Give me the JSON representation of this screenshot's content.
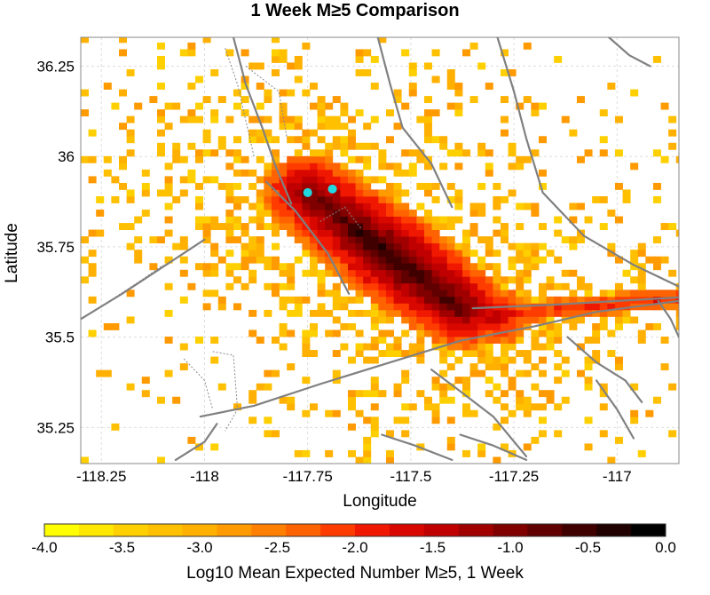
{
  "chart_data": {
    "type": "heatmap",
    "title": "1 Week M≥5 Comparison",
    "xlabel": "Longitude",
    "ylabel": "Latitude",
    "xlim": [
      -118.3,
      -116.85
    ],
    "ylim": [
      35.15,
      36.33
    ],
    "x_ticks": [
      -118.25,
      -118,
      -117.75,
      -117.5,
      -117.25,
      -117
    ],
    "x_tick_labels": [
      "-118.25",
      "-118",
      "-117.75",
      "-117.5",
      "-117.25",
      "-117"
    ],
    "y_ticks": [
      35.25,
      35.5,
      35.75,
      36,
      36.25
    ],
    "y_tick_labels": [
      "35.25",
      "35.5",
      "35.75",
      "36",
      "36.25"
    ],
    "grid": true,
    "cell_size_deg": 0.0185,
    "colorbar": {
      "label": "Log10 Mean Expected Number M≥5, 1 Week",
      "range": [
        -4.0,
        0.0
      ],
      "tick_values": [
        -4.0,
        -3.5,
        -3.0,
        -2.5,
        -2.0,
        -1.5,
        -1.0,
        -0.5,
        0.0
      ],
      "tick_labels": [
        "-4.0",
        "-3.5",
        "-3.0",
        "-2.5",
        "-2.0",
        "-1.5",
        "-1.0",
        "-0.5",
        "0.0"
      ],
      "colors": [
        "#ffff00",
        "#ffe800",
        "#ffd000",
        "#ffc000",
        "#ffb000",
        "#ff9a00",
        "#ff8000",
        "#ff6200",
        "#ff3c00",
        "#f01800",
        "#d80800",
        "#c00000",
        "#a00000",
        "#800000",
        "#600000",
        "#400000",
        "#200000",
        "#000000"
      ]
    },
    "hotspot_model": {
      "background_level": -3.1,
      "main_trend": {
        "x0": -117.75,
        "y0": 35.9,
        "x1": -117.38,
        "y1": 35.58,
        "peak": -0.4
      },
      "secondary_lobe": {
        "x": -117.3,
        "y": 35.56,
        "peak": -1.4
      },
      "east_band": {
        "x0": -117.4,
        "y0": 35.55,
        "x1": -116.85,
        "y1": 35.61,
        "peak": -1.9
      }
    },
    "markers": [
      {
        "lon": -117.75,
        "lat": 35.9,
        "color": "#22d8e0"
      },
      {
        "lon": -117.69,
        "lat": 35.91,
        "color": "#22d8e0"
      }
    ],
    "fault_traces": [
      [
        [
          -118.3,
          35.55
        ],
        [
          -118.2,
          35.62
        ],
        [
          -118.08,
          35.71
        ],
        [
          -118.0,
          35.77
        ]
      ],
      [
        [
          -118.01,
          35.28
        ],
        [
          -117.88,
          35.31
        ],
        [
          -117.72,
          35.37
        ],
        [
          -117.55,
          35.43
        ],
        [
          -117.38,
          35.49
        ],
        [
          -117.2,
          35.53
        ],
        [
          -117.05,
          35.57
        ],
        [
          -116.85,
          35.6
        ]
      ],
      [
        [
          -117.35,
          35.58
        ],
        [
          -117.15,
          35.59
        ],
        [
          -117.0,
          35.6
        ],
        [
          -116.85,
          35.61
        ]
      ],
      [
        [
          -117.85,
          35.93
        ],
        [
          -117.78,
          35.85
        ],
        [
          -117.7,
          35.73
        ],
        [
          -117.65,
          35.62
        ]
      ],
      [
        [
          -117.93,
          36.33
        ],
        [
          -117.9,
          36.2
        ],
        [
          -117.86,
          36.08
        ],
        [
          -117.83,
          35.98
        ],
        [
          -117.79,
          35.87
        ]
      ],
      [
        [
          -117.58,
          36.33
        ],
        [
          -117.55,
          36.2
        ],
        [
          -117.52,
          36.08
        ],
        [
          -117.45,
          35.98
        ],
        [
          -117.4,
          35.86
        ]
      ],
      [
        [
          -117.29,
          36.33
        ],
        [
          -117.25,
          36.18
        ],
        [
          -117.22,
          36.05
        ],
        [
          -117.18,
          35.9
        ],
        [
          -117.08,
          35.78
        ],
        [
          -116.96,
          35.7
        ],
        [
          -116.85,
          35.64
        ]
      ],
      [
        [
          -117.02,
          36.33
        ],
        [
          -116.97,
          36.28
        ],
        [
          -116.92,
          36.25
        ]
      ],
      [
        [
          -117.45,
          35.41
        ],
        [
          -117.38,
          35.35
        ],
        [
          -117.3,
          35.28
        ],
        [
          -117.22,
          35.17
        ]
      ],
      [
        [
          -117.12,
          35.5
        ],
        [
          -117.05,
          35.43
        ],
        [
          -116.98,
          35.38
        ],
        [
          -116.94,
          35.32
        ]
      ],
      [
        [
          -117.05,
          35.38
        ],
        [
          -117.0,
          35.3
        ],
        [
          -116.96,
          35.22
        ]
      ],
      [
        [
          -118.07,
          35.16
        ],
        [
          -118.0,
          35.21
        ],
        [
          -117.97,
          35.26
        ]
      ],
      [
        [
          -117.57,
          35.23
        ],
        [
          -117.49,
          35.2
        ],
        [
          -117.4,
          35.16
        ]
      ],
      [
        [
          -117.38,
          35.23
        ],
        [
          -117.3,
          35.2
        ],
        [
          -117.22,
          35.16
        ]
      ],
      [
        [
          -116.9,
          35.6
        ],
        [
          -116.87,
          35.55
        ],
        [
          -116.85,
          35.5
        ]
      ]
    ],
    "minor_traces": [
      [
        [
          -117.95,
          36.3
        ],
        [
          -117.92,
          36.2
        ],
        [
          -117.9,
          36.1
        ],
        [
          -117.88,
          36.0
        ]
      ],
      [
        [
          -117.9,
          36.25
        ],
        [
          -117.82,
          36.18
        ],
        [
          -117.8,
          36.05
        ]
      ],
      [
        [
          -117.98,
          35.46
        ],
        [
          -117.93,
          35.45
        ],
        [
          -117.92,
          35.3
        ],
        [
          -117.95,
          35.24
        ]
      ],
      [
        [
          -118.05,
          35.44
        ],
        [
          -118.0,
          35.38
        ],
        [
          -117.98,
          35.3
        ]
      ],
      [
        [
          -117.72,
          35.82
        ],
        [
          -117.66,
          35.86
        ],
        [
          -117.62,
          35.8
        ]
      ],
      [
        [
          -118.23,
          35.6
        ],
        [
          -118.15,
          35.66
        ],
        [
          -118.1,
          35.7
        ]
      ]
    ]
  }
}
